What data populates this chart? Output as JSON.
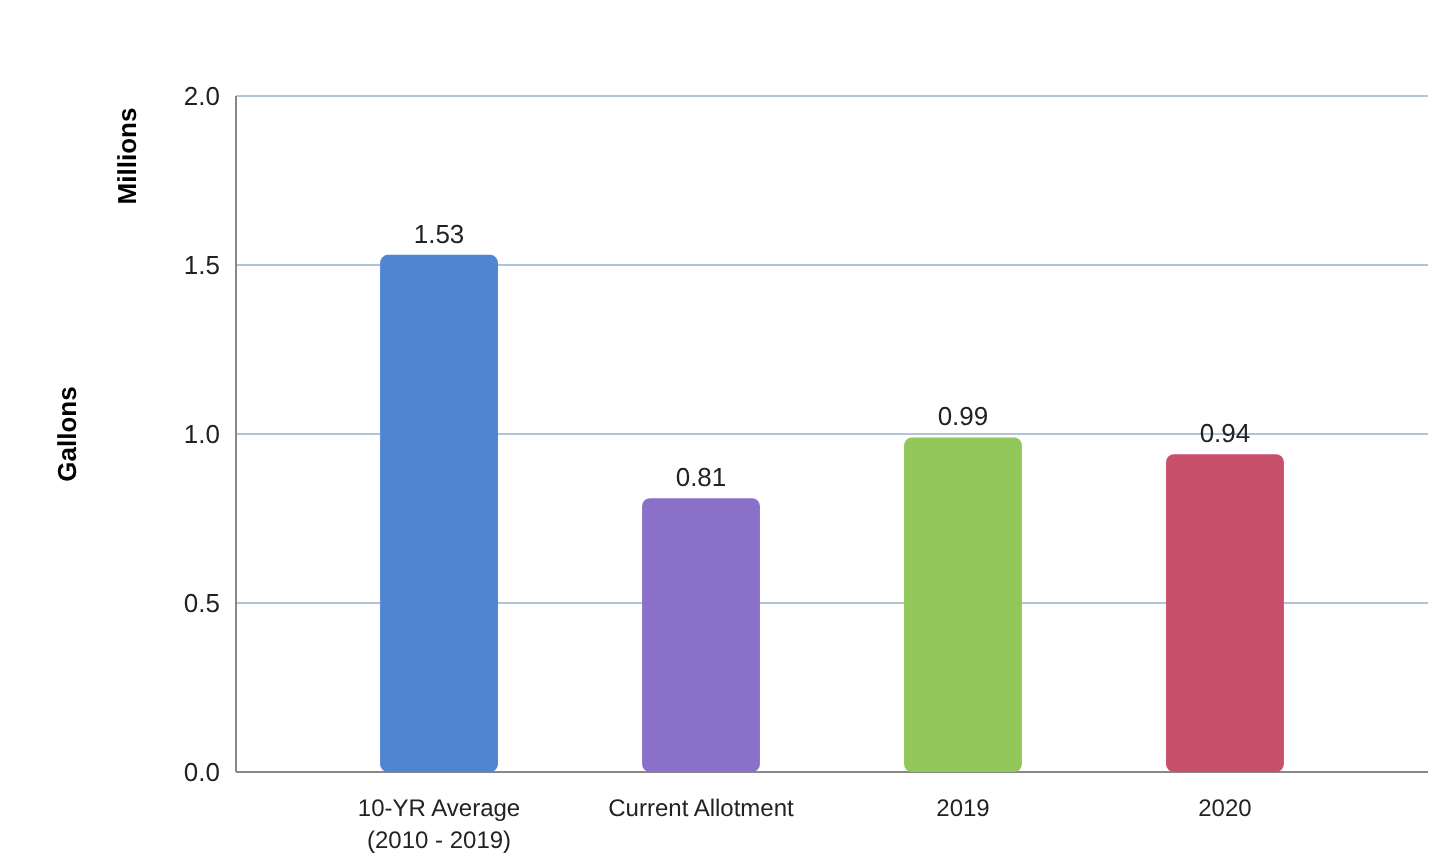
{
  "chart_data": {
    "type": "bar",
    "ylabel": "Gallons",
    "annotations": [
      "Millions"
    ],
    "categories": [
      "10-YR Average\n(2010 - 2019)",
      "Current Allotment",
      "2019",
      "2020"
    ],
    "values": [
      1.53,
      0.81,
      0.99,
      0.94
    ],
    "colors": [
      "#4f86d4",
      "#8a70c8",
      "#92c85a",
      "#c8506a"
    ],
    "ylim": [
      0,
      2
    ],
    "yticks": [
      {
        "value": 0,
        "label": "0.0"
      },
      {
        "value": 0.5,
        "label": "0.5"
      },
      {
        "value": 1,
        "label": "1.0"
      },
      {
        "value": 1.5,
        "label": "1.5"
      },
      {
        "value": 2,
        "label": "2.0"
      }
    ],
    "grid": true,
    "data_labels": true
  }
}
